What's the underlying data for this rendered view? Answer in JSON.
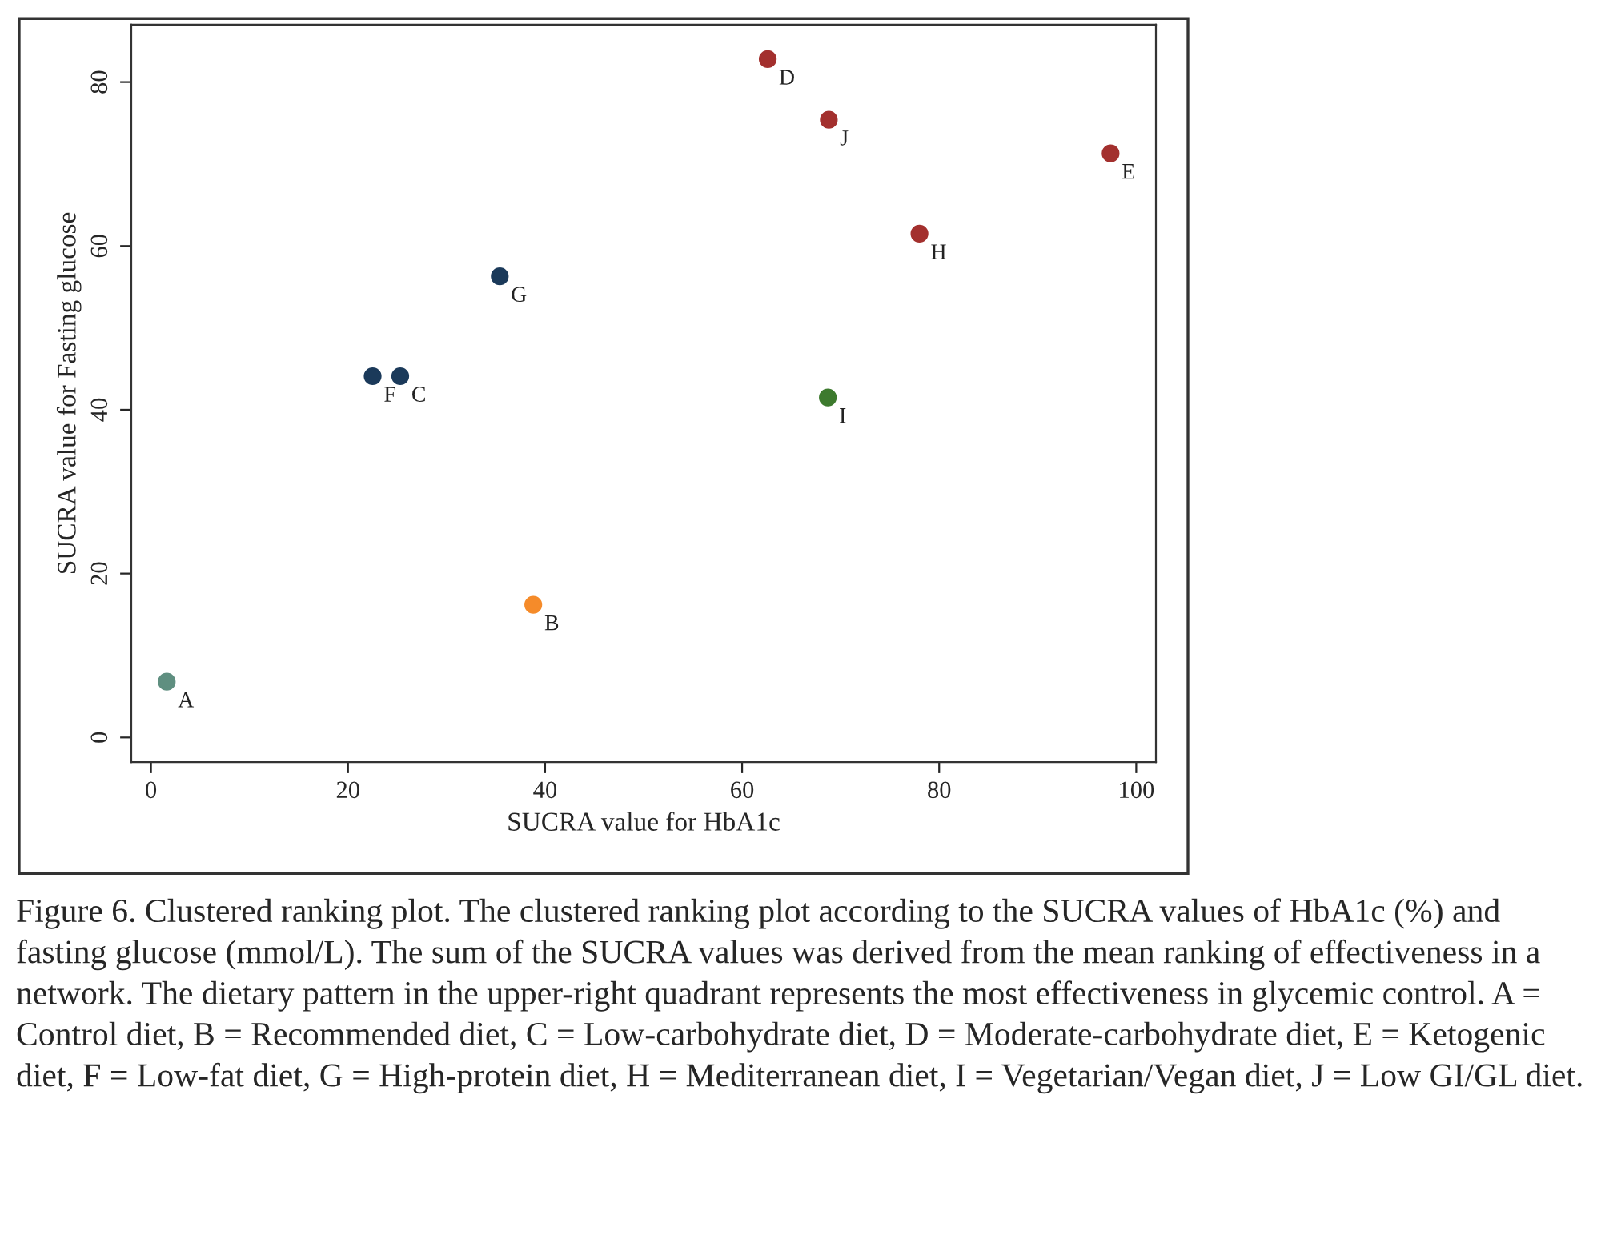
{
  "chart_data": {
    "type": "scatter",
    "xlabel": "SUCRA value for HbA1c",
    "ylabel": "SUCRA value for Fasting glucose",
    "xlim": [
      -2,
      102
    ],
    "ylim": [
      -3,
      87
    ],
    "xticks": [
      0,
      20,
      40,
      60,
      80,
      100
    ],
    "yticks": [
      0,
      20,
      40,
      60,
      80
    ],
    "grid": false,
    "legend": false,
    "marker": "circle",
    "series": [
      {
        "name": "A",
        "color": "#5f8f80",
        "x": [
          1.6
        ],
        "values": [
          6.8
        ]
      },
      {
        "name": "B",
        "color": "#f58b2a",
        "x": [
          38.8
        ],
        "values": [
          16.2
        ]
      },
      {
        "name": "C",
        "color": "#1b3a5a",
        "x": [
          25.3
        ],
        "values": [
          44.1
        ]
      },
      {
        "name": "D",
        "color": "#a3302e",
        "x": [
          62.6
        ],
        "values": [
          82.8
        ]
      },
      {
        "name": "E",
        "color": "#a3302e",
        "x": [
          97.4
        ],
        "values": [
          71.3
        ]
      },
      {
        "name": "F",
        "color": "#1b3a5a",
        "x": [
          22.5
        ],
        "values": [
          44.1
        ]
      },
      {
        "name": "G",
        "color": "#1b3a5a",
        "x": [
          35.4
        ],
        "values": [
          56.3
        ]
      },
      {
        "name": "H",
        "color": "#a3302e",
        "x": [
          78.0
        ],
        "values": [
          61.5
        ]
      },
      {
        "name": "I",
        "color": "#3d7a2e",
        "x": [
          68.7
        ],
        "values": [
          41.5
        ]
      },
      {
        "name": "J",
        "color": "#a3302e",
        "x": [
          68.8
        ],
        "values": [
          75.4
        ]
      }
    ],
    "annotations": [
      "Figure 6. Clustered ranking plot. The clustered ranking plot according to the SUCRA values of HbA1c (%) and fasting glucose (mmol/L). The sum of the SUCRA values was derived from the mean ranking of effectiveness in a network. The dietary pattern in the upper-right quadrant represents the most effectiveness in glycemic control. A = Control diet, B = Recommended diet, C = Low-carbohydrate diet, D = Moderate-carbohydrate diet, E = Ketogenic diet, F = Low-fat diet, G = High-protein diet, H = Mediterranean diet, I = Vegetarian/Vegan diet, J = Low GI/GL diet."
    ]
  }
}
